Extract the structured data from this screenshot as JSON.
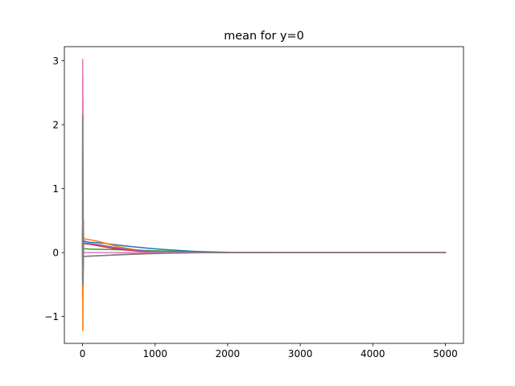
{
  "chart_data": {
    "type": "line",
    "title": "mean for y=0",
    "xlabel": "",
    "ylabel": "",
    "xlim": [
      -250,
      5250
    ],
    "ylim": [
      -1.42,
      3.22
    ],
    "xticks": [
      0,
      1000,
      2000,
      3000,
      4000,
      5000
    ],
    "yticks": [
      -1,
      0,
      1,
      2,
      3
    ],
    "xtick_labels": [
      "0",
      "1000",
      "2000",
      "3000",
      "4000",
      "5000"
    ],
    "ytick_labels": [
      "−1",
      "0",
      "1",
      "2",
      "3"
    ],
    "grid": false,
    "legend": "none",
    "series": [
      {
        "color": "#1f77b4",
        "points": [
          [
            0,
            0.3
          ],
          [
            3,
            -0.6
          ],
          [
            6,
            1.1
          ],
          [
            9,
            -0.3
          ],
          [
            12,
            0.5
          ],
          [
            16,
            0.15
          ],
          [
            25,
            0.18
          ],
          [
            50,
            0.17
          ],
          [
            100,
            0.16
          ],
          [
            200,
            0.155
          ],
          [
            300,
            0.145
          ],
          [
            400,
            0.13
          ],
          [
            500,
            0.115
          ],
          [
            700,
            0.09
          ],
          [
            900,
            0.068
          ],
          [
            1100,
            0.05
          ],
          [
            1300,
            0.035
          ],
          [
            1500,
            0.022
          ],
          [
            1700,
            0.013
          ],
          [
            1900,
            0.007
          ],
          [
            2100,
            0.003
          ],
          [
            2500,
            0.001
          ],
          [
            3000,
            0
          ],
          [
            4000,
            0
          ],
          [
            5000,
            0
          ]
        ]
      },
      {
        "color": "#ff7f0e",
        "points": [
          [
            0,
            -0.7
          ],
          [
            2,
            0.8
          ],
          [
            4,
            -1.22
          ],
          [
            6,
            -1.15
          ],
          [
            8,
            -0.4
          ],
          [
            10,
            0.45
          ],
          [
            13,
            0.2
          ],
          [
            20,
            0.22
          ],
          [
            50,
            0.21
          ],
          [
            100,
            0.2
          ],
          [
            200,
            0.18
          ],
          [
            300,
            0.15
          ],
          [
            400,
            0.12
          ],
          [
            500,
            0.09
          ],
          [
            700,
            0.05
          ],
          [
            900,
            0.025
          ],
          [
            1100,
            0.01
          ],
          [
            1400,
            0.003
          ],
          [
            2000,
            0
          ],
          [
            3000,
            0
          ],
          [
            5000,
            0
          ]
        ]
      },
      {
        "color": "#2ca02c",
        "points": [
          [
            0,
            0.4
          ],
          [
            3,
            -0.3
          ],
          [
            6,
            0.6
          ],
          [
            9,
            0.0
          ],
          [
            12,
            0.08
          ],
          [
            20,
            0.06
          ],
          [
            100,
            0.055
          ],
          [
            300,
            0.05
          ],
          [
            500,
            0.045
          ],
          [
            800,
            0.035
          ],
          [
            1100,
            0.025
          ],
          [
            1400,
            0.015
          ],
          [
            1700,
            0.008
          ],
          [
            2000,
            0.003
          ],
          [
            2500,
            0.001
          ],
          [
            3000,
            0
          ],
          [
            5000,
            0
          ]
        ]
      },
      {
        "color": "#d62728",
        "points": [
          [
            0,
            0.2
          ],
          [
            3,
            -0.4
          ],
          [
            6,
            0.9
          ],
          [
            9,
            -0.2
          ],
          [
            12,
            0.1
          ],
          [
            20,
            0.14
          ],
          [
            100,
            0.13
          ],
          [
            250,
            0.1
          ],
          [
            400,
            0.07
          ],
          [
            600,
            0.04
          ],
          [
            800,
            0.02
          ],
          [
            1000,
            0.01
          ],
          [
            1300,
            0.003
          ],
          [
            2000,
            0
          ],
          [
            5000,
            0
          ]
        ]
      },
      {
        "color": "#9467bd",
        "points": [
          [
            0,
            -0.4
          ],
          [
            3,
            2.4
          ],
          [
            6,
            0.2
          ],
          [
            9,
            -0.5
          ],
          [
            12,
            0.05
          ],
          [
            20,
            0.15
          ],
          [
            100,
            0.14
          ],
          [
            250,
            0.12
          ],
          [
            400,
            0.09
          ],
          [
            600,
            0.055
          ],
          [
            800,
            0.03
          ],
          [
            1000,
            0.015
          ],
          [
            1300,
            0.005
          ],
          [
            2000,
            0
          ],
          [
            5000,
            0
          ]
        ]
      },
      {
        "color": "#8c564b",
        "points": [
          [
            0,
            0.0
          ],
          [
            3,
            0.5
          ],
          [
            6,
            -0.2
          ],
          [
            9,
            0.1
          ],
          [
            12,
            -0.05
          ],
          [
            20,
            -0.06
          ],
          [
            100,
            -0.055
          ],
          [
            300,
            -0.045
          ],
          [
            500,
            -0.035
          ],
          [
            800,
            -0.022
          ],
          [
            1100,
            -0.012
          ],
          [
            1500,
            -0.004
          ],
          [
            2000,
            -0.001
          ],
          [
            3000,
            0
          ],
          [
            5000,
            0
          ]
        ]
      },
      {
        "color": "#e377c2",
        "points": [
          [
            0,
            1.0
          ],
          [
            2,
            3.02
          ],
          [
            3,
            2.9
          ],
          [
            4,
            2.2
          ],
          [
            5,
            2.75
          ],
          [
            6,
            1.5
          ],
          [
            7,
            2.4
          ],
          [
            8,
            0.6
          ],
          [
            9,
            1.3
          ],
          [
            10,
            0.2
          ],
          [
            12,
            0.05
          ],
          [
            20,
            0.0
          ],
          [
            100,
            0.0
          ],
          [
            5000,
            0.0
          ]
        ]
      },
      {
        "color": "#7f7f7f",
        "points": [
          [
            0,
            0.5
          ],
          [
            2,
            2.15
          ],
          [
            3,
            -0.5
          ],
          [
            5,
            1.6
          ],
          [
            6,
            -0.3
          ],
          [
            8,
            0.9
          ],
          [
            10,
            -0.2
          ],
          [
            12,
            -0.05
          ],
          [
            20,
            -0.06
          ],
          [
            100,
            -0.055
          ],
          [
            300,
            -0.045
          ],
          [
            500,
            -0.03
          ],
          [
            800,
            -0.018
          ],
          [
            1100,
            -0.009
          ],
          [
            1500,
            -0.003
          ],
          [
            2000,
            0
          ],
          [
            5000,
            0
          ]
        ]
      }
    ]
  }
}
